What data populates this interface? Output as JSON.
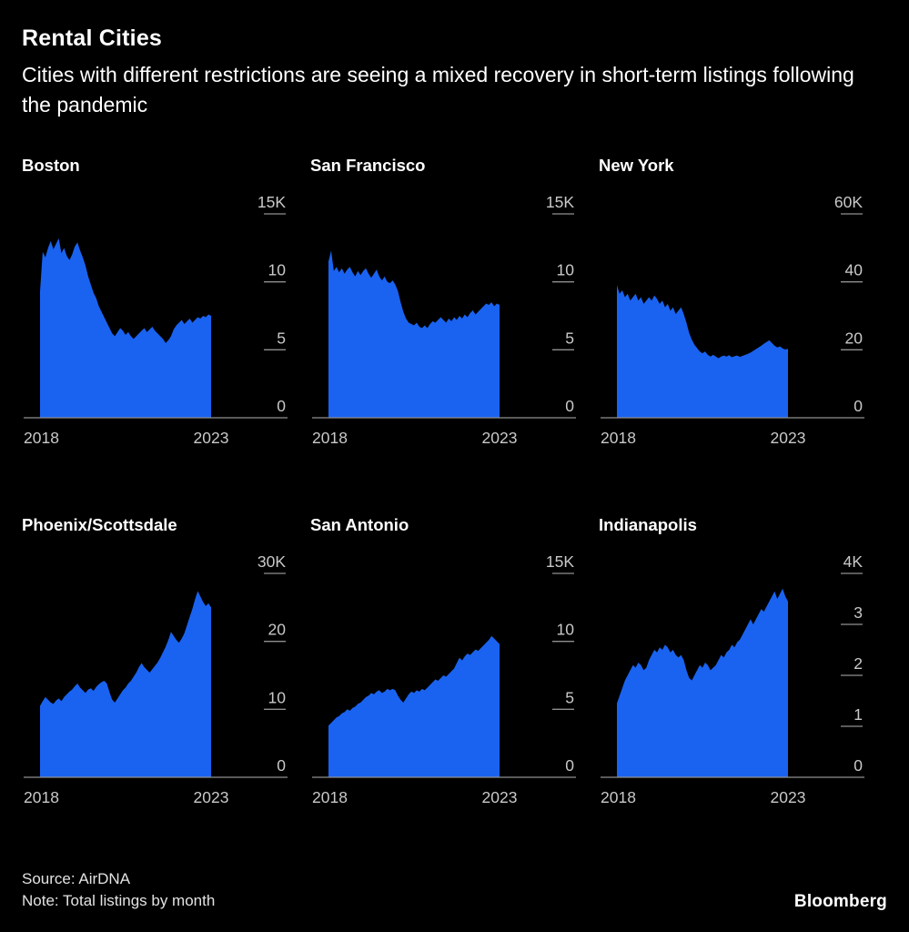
{
  "header": {
    "title": "Rental Cities",
    "subtitle": "Cities with different restrictions are seeing a mixed recovery in short-term listings following the pandemic"
  },
  "footer": {
    "source": "Source: AirDNA",
    "note": "Note: Total listings by month",
    "brand": "Bloomberg"
  },
  "colors": {
    "background": "#000000",
    "area": "#1a63f1",
    "axis": "#8f8f8f",
    "tick_text": "#c9c9c9",
    "title_text": "#ffffff",
    "footer_text": "#e2e2e2"
  },
  "chart_data": [
    {
      "type": "area",
      "title": "Boston",
      "unit": "thousands of listings",
      "frequency": "monthly",
      "x_tick_labels": [
        "2018",
        "2023"
      ],
      "y_max": 15,
      "y_ticks": [
        {
          "value": 15,
          "label": "15K"
        },
        {
          "value": 10,
          "label": "10"
        },
        {
          "value": 5,
          "label": "5"
        },
        {
          "value": 0,
          "label": "0"
        }
      ],
      "values_thousands": [
        9.3,
        12.2,
        11.8,
        12.5,
        13.0,
        12.4,
        12.8,
        13.2,
        12.1,
        12.5,
        11.9,
        11.6,
        12.0,
        12.6,
        12.9,
        12.3,
        11.8,
        11.2,
        10.4,
        9.8,
        9.2,
        8.8,
        8.2,
        7.8,
        7.4,
        7.0,
        6.6,
        6.2,
        6.0,
        6.3,
        6.6,
        6.4,
        6.1,
        6.3,
        6.0,
        5.8,
        6.0,
        6.2,
        6.4,
        6.6,
        6.3,
        6.5,
        6.7,
        6.4,
        6.2,
        6.0,
        5.8,
        5.5,
        5.7,
        6.0,
        6.5,
        6.8,
        7.0,
        7.2,
        6.9,
        7.1,
        7.3,
        7.0,
        7.2,
        7.4,
        7.3,
        7.5,
        7.4,
        7.6,
        7.5
      ]
    },
    {
      "type": "area",
      "title": "San Francisco",
      "unit": "thousands of listings",
      "frequency": "monthly",
      "x_tick_labels": [
        "2018",
        "2023"
      ],
      "y_max": 15,
      "y_ticks": [
        {
          "value": 15,
          "label": "15K"
        },
        {
          "value": 10,
          "label": "10"
        },
        {
          "value": 5,
          "label": "5"
        },
        {
          "value": 0,
          "label": "0"
        }
      ],
      "values_thousands": [
        11.5,
        12.3,
        10.8,
        11.1,
        10.7,
        11.0,
        10.6,
        10.9,
        11.1,
        10.7,
        10.4,
        10.8,
        10.5,
        10.8,
        11.0,
        10.6,
        10.3,
        10.6,
        10.9,
        10.4,
        10.1,
        10.4,
        10.0,
        9.9,
        10.1,
        9.8,
        9.3,
        8.5,
        7.8,
        7.3,
        7.0,
        6.9,
        6.8,
        7.0,
        6.7,
        6.6,
        6.8,
        6.6,
        6.9,
        7.1,
        7.0,
        7.2,
        7.4,
        7.2,
        7.0,
        7.3,
        7.1,
        7.4,
        7.2,
        7.5,
        7.3,
        7.6,
        7.4,
        7.7,
        7.9,
        7.6,
        7.8,
        8.0,
        8.2,
        8.4,
        8.3,
        8.5,
        8.2,
        8.4,
        8.3
      ]
    },
    {
      "type": "area",
      "title": "New York",
      "unit": "thousands of listings",
      "frequency": "monthly",
      "x_tick_labels": [
        "2018",
        "2023"
      ],
      "y_max": 60,
      "y_ticks": [
        {
          "value": 60,
          "label": "60K"
        },
        {
          "value": 40,
          "label": "40"
        },
        {
          "value": 20,
          "label": "20"
        },
        {
          "value": 0,
          "label": "0"
        }
      ],
      "values_thousands": [
        39,
        36.5,
        37.5,
        35.5,
        36.5,
        34.5,
        35.5,
        36.5,
        34.5,
        35.5,
        33.5,
        34.5,
        35.5,
        34.5,
        36,
        35,
        33.5,
        34.5,
        32.5,
        33.5,
        31.5,
        32.5,
        30.5,
        31.5,
        32.5,
        30.5,
        28,
        25,
        23,
        21.5,
        20.5,
        19.5,
        19,
        19.5,
        18.5,
        18,
        18.5,
        18,
        17.5,
        18,
        18.3,
        18,
        18.4,
        17.8,
        18.1,
        18.3,
        17.9,
        18.2,
        18.5,
        18.8,
        19.2,
        19.7,
        20.2,
        20.7,
        21.2,
        21.8,
        22.3,
        22.8,
        22,
        21.2,
        20.7,
        21,
        20.4,
        20.1,
        20.3
      ]
    },
    {
      "type": "area",
      "title": "Phoenix/Scottsdale",
      "unit": "thousands of listings",
      "frequency": "monthly",
      "x_tick_labels": [
        "2018",
        "2023"
      ],
      "y_max": 30,
      "y_ticks": [
        {
          "value": 30,
          "label": "30K"
        },
        {
          "value": 20,
          "label": "20"
        },
        {
          "value": 10,
          "label": "10"
        },
        {
          "value": 0,
          "label": "0"
        }
      ],
      "values_thousands": [
        10.5,
        11.2,
        11.8,
        11.4,
        11.0,
        10.8,
        11.3,
        11.6,
        11.2,
        11.8,
        12.2,
        12.6,
        12.9,
        13.4,
        13.8,
        13.2,
        12.8,
        12.4,
        12.9,
        13.1,
        12.7,
        13.3,
        13.7,
        14.0,
        14.2,
        13.8,
        12.5,
        11.4,
        11.0,
        11.6,
        12.2,
        12.8,
        13.2,
        13.8,
        14.2,
        14.8,
        15.4,
        16.2,
        16.8,
        16.2,
        15.8,
        15.4,
        15.9,
        16.4,
        16.9,
        17.6,
        18.4,
        19.2,
        20.2,
        21.4,
        20.8,
        20.2,
        19.8,
        20.4,
        21.2,
        22.4,
        23.6,
        24.8,
        26.2,
        27.4,
        26.6,
        25.8,
        25.2,
        25.6,
        25.0
      ]
    },
    {
      "type": "area",
      "title": "San Antonio",
      "unit": "thousands of listings",
      "frequency": "monthly",
      "x_tick_labels": [
        "2018",
        "2023"
      ],
      "y_max": 15,
      "y_ticks": [
        {
          "value": 15,
          "label": "15K"
        },
        {
          "value": 10,
          "label": "10"
        },
        {
          "value": 5,
          "label": "5"
        },
        {
          "value": 0,
          "label": "0"
        }
      ],
      "values_thousands": [
        3.8,
        4.0,
        4.2,
        4.4,
        4.5,
        4.7,
        4.8,
        5.0,
        4.9,
        5.1,
        5.2,
        5.4,
        5.5,
        5.7,
        5.9,
        6.0,
        6.2,
        6.1,
        6.3,
        6.4,
        6.2,
        6.3,
        6.5,
        6.4,
        6.5,
        6.4,
        6.0,
        5.7,
        5.5,
        5.8,
        6.1,
        6.3,
        6.2,
        6.4,
        6.3,
        6.5,
        6.4,
        6.6,
        6.8,
        7.0,
        7.2,
        7.1,
        7.3,
        7.5,
        7.4,
        7.6,
        7.8,
        8.0,
        8.4,
        8.8,
        8.6,
        8.9,
        9.1,
        9.0,
        9.2,
        9.4,
        9.3,
        9.5,
        9.7,
        9.9,
        10.1,
        10.4,
        10.2,
        10.0,
        9.8
      ]
    },
    {
      "type": "area",
      "title": "Indianapolis",
      "unit": "thousands of listings",
      "frequency": "monthly",
      "x_tick_labels": [
        "2018",
        "2023"
      ],
      "y_max": 4,
      "y_ticks": [
        {
          "value": 4,
          "label": "4K"
        },
        {
          "value": 3,
          "label": "3"
        },
        {
          "value": 2,
          "label": "2"
        },
        {
          "value": 1,
          "label": "1"
        },
        {
          "value": 0,
          "label": "0"
        }
      ],
      "values_thousands": [
        1.45,
        1.6,
        1.75,
        1.9,
        2.0,
        2.1,
        2.2,
        2.15,
        2.25,
        2.2,
        2.1,
        2.15,
        2.3,
        2.4,
        2.5,
        2.45,
        2.55,
        2.5,
        2.6,
        2.55,
        2.45,
        2.5,
        2.4,
        2.35,
        2.4,
        2.3,
        2.1,
        1.95,
        1.9,
        2.0,
        2.1,
        2.2,
        2.15,
        2.25,
        2.2,
        2.1,
        2.15,
        2.2,
        2.3,
        2.4,
        2.35,
        2.45,
        2.5,
        2.6,
        2.55,
        2.65,
        2.7,
        2.8,
        2.9,
        3.0,
        3.1,
        3.0,
        3.1,
        3.2,
        3.3,
        3.25,
        3.35,
        3.45,
        3.55,
        3.65,
        3.5,
        3.6,
        3.7,
        3.55,
        3.45
      ]
    }
  ]
}
